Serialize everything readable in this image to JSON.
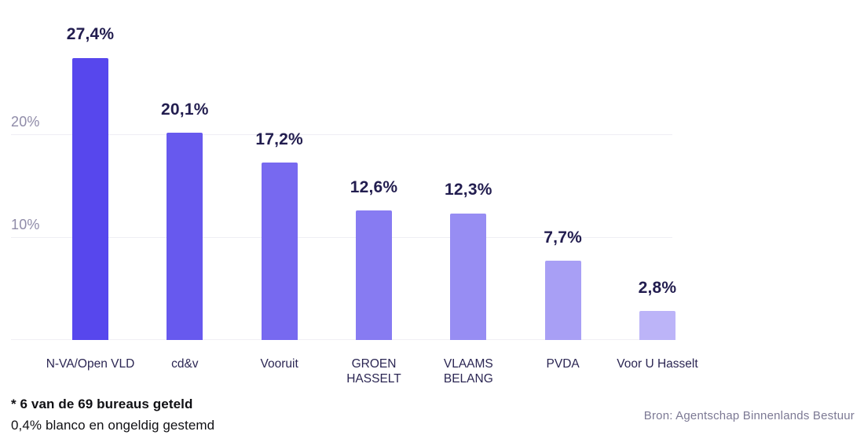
{
  "chart_data": {
    "type": "bar",
    "title": "",
    "xlabel": "",
    "ylabel": "",
    "categories": [
      "N-VA/Open VLD",
      "cd&v",
      "Vooruit",
      "GROEN HASSELT",
      "VLAAMS BELANG",
      "PVDA",
      "Voor U Hasselt"
    ],
    "category_display": [
      "N-VA/Open VLD",
      "cd&v",
      "Vooruit",
      "GROEN HASSELT",
      "VLAAMS\nBELANG",
      "PVDA",
      "Voor U Hasselt"
    ],
    "values": [
      27.4,
      20.1,
      17.2,
      12.6,
      12.3,
      7.7,
      2.8
    ],
    "value_labels": [
      "27,4%",
      "20,1%",
      "17,2%",
      "12,6%",
      "12,3%",
      "7,7%",
      "2,8%"
    ],
    "bar_colors": [
      "#5747ED",
      "#6759EE",
      "#7769F0",
      "#877BF2",
      "#978DF3",
      "#A89FF5",
      "#BCB4F8"
    ],
    "ylim": [
      0,
      33
    ],
    "yticks": [
      {
        "value": 10,
        "label": "10%"
      },
      {
        "value": 20,
        "label": "20%"
      }
    ],
    "grid": true,
    "legend": false
  },
  "footnote": {
    "line1": "* 6 van de 69 bureaus geteld",
    "line2": "0,4% blanco en ongeldig gestemd"
  },
  "source": {
    "text": "Bron: Agentschap Binnenlands Bestuur"
  },
  "colors": {
    "value_label": "#221D4F",
    "category_label": "#2B2653",
    "tick_label": "#8F8BA8",
    "gridline": "#EFEEF4",
    "footnote_text": "#101014",
    "source_text": "#7C7994"
  }
}
